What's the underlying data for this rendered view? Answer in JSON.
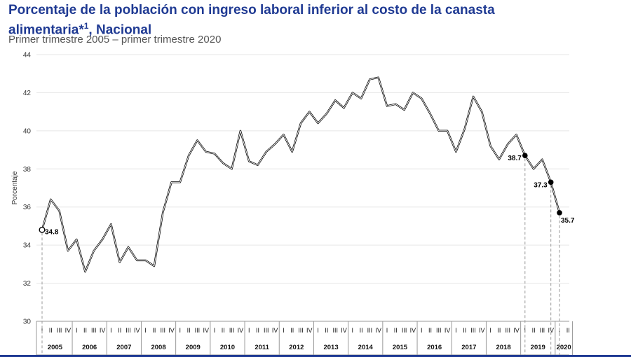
{
  "header": {
    "title_main": "Porcentaje de la población con ingreso laboral inferior al costo de la canasta alimentaria*",
    "title_sup": "1",
    "title_tail": ", Nacional",
    "subtitle": "Primer trimestre 2005 – primer trimestre 2020"
  },
  "chart_data": {
    "type": "line",
    "ylabel": "Porcentaje",
    "ylim": [
      30,
      44
    ],
    "yticks": [
      30,
      32,
      34,
      36,
      38,
      40,
      42,
      44
    ],
    "grid": "horizontal",
    "quarter_labels": [
      "I",
      "II",
      "III",
      "IV"
    ],
    "years": [
      "2005",
      "2006",
      "2007",
      "2008",
      "2009",
      "2010",
      "2011",
      "2012",
      "2013",
      "2014",
      "2015",
      "2016",
      "2017",
      "2018",
      "2019",
      "2020"
    ],
    "series": [
      {
        "values": [
          34.8,
          36.4,
          35.8,
          33.7,
          34.3,
          32.6,
          33.7,
          34.3,
          35.1,
          33.1,
          33.9,
          33.2,
          33.2,
          32.9,
          35.7,
          37.3,
          37.3,
          38.7,
          39.5,
          38.9,
          38.8,
          38.3,
          38.0,
          40.0,
          38.4,
          38.2,
          38.9,
          39.3,
          39.8,
          38.9,
          40.4,
          41.0,
          40.4,
          40.9,
          41.6,
          41.2,
          42.0,
          41.7,
          42.7,
          42.8,
          41.3,
          41.4,
          41.1,
          42.0,
          41.7,
          40.9,
          40.0,
          40.0,
          38.9,
          40.1,
          41.8,
          41.0,
          39.2,
          38.5,
          39.3,
          39.8,
          38.7,
          38.0,
          38.5,
          37.3,
          35.7
        ]
      }
    ],
    "annotations": [
      {
        "index": 0,
        "label": "34.8",
        "marker": "open"
      },
      {
        "index": 56,
        "label": "38.7",
        "marker": "filled"
      },
      {
        "index": 59,
        "label": "37.3",
        "marker": "filled"
      },
      {
        "index": 60,
        "label": "35.7",
        "marker": "filled"
      }
    ]
  }
}
